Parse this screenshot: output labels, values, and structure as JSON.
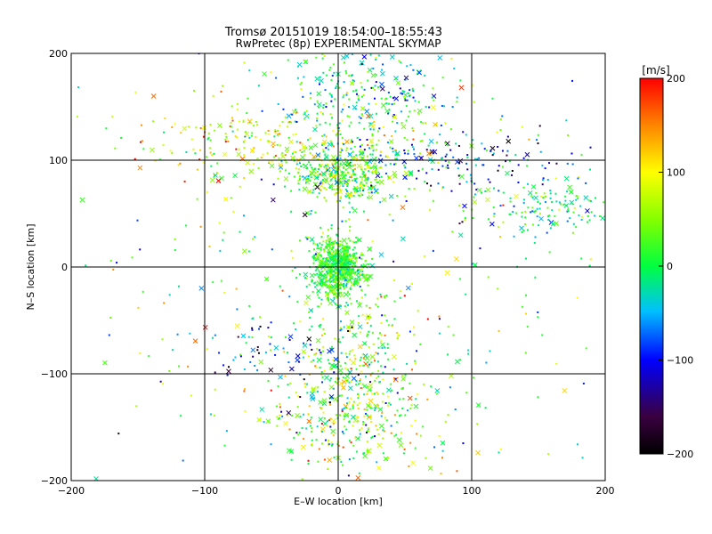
{
  "chart_data": {
    "type": "scatter",
    "title_line1": "Tromsø 20151019 18:54:00–18:55:43",
    "title_line2": "RwPretec (8p) EXPERIMENTAL SKYMAP",
    "xlabel": "E–W location [km]",
    "ylabel": "N–S location [km]",
    "xlim": [
      -200,
      200
    ],
    "ylim": [
      -200,
      200
    ],
    "xticks": [
      -200,
      -100,
      0,
      100,
      200
    ],
    "yticks": [
      -200,
      -100,
      0,
      100,
      200
    ],
    "grid": true,
    "colorbar": {
      "unit": "[m/s]",
      "range": [
        -200,
        200
      ],
      "ticks": [
        200,
        100,
        0,
        -100,
        -200
      ],
      "colormap": "rainbow (black-purple-blue-cyan-green-yellow-red)"
    },
    "marker_types": [
      "dot",
      "cross"
    ],
    "clusters": [
      {
        "x": 0,
        "y": 0,
        "sx": 10,
        "sy": 14,
        "n": 650,
        "v": 15,
        "vs": 30
      },
      {
        "x": 5,
        "y": 88,
        "sx": 22,
        "sy": 14,
        "n": 420,
        "v": 30,
        "vs": 50
      },
      {
        "x": 20,
        "y": 160,
        "sx": 35,
        "sy": 25,
        "n": 280,
        "v": -10,
        "vs": 60
      },
      {
        "x": -60,
        "y": 120,
        "sx": 55,
        "sy": 18,
        "n": 220,
        "v": 80,
        "vs": 60
      },
      {
        "x": 160,
        "y": 55,
        "sx": 30,
        "sy": 12,
        "n": 150,
        "v": -5,
        "vs": 50
      },
      {
        "x": 100,
        "y": 100,
        "sx": 40,
        "sy": 12,
        "n": 120,
        "v": -90,
        "vs": 60
      },
      {
        "x": 15,
        "y": -90,
        "sx": 20,
        "sy": 40,
        "n": 260,
        "v": 40,
        "vs": 60
      },
      {
        "x": 10,
        "y": -140,
        "sx": 35,
        "sy": 25,
        "n": 240,
        "v": 40,
        "vs": 70
      },
      {
        "x": -40,
        "y": -80,
        "sx": 30,
        "sy": 20,
        "n": 80,
        "v": -90,
        "vs": 80
      },
      {
        "x": 0,
        "y": 0,
        "sx": 120,
        "sy": 120,
        "n": 400,
        "v": 10,
        "vs": 90
      }
    ]
  }
}
